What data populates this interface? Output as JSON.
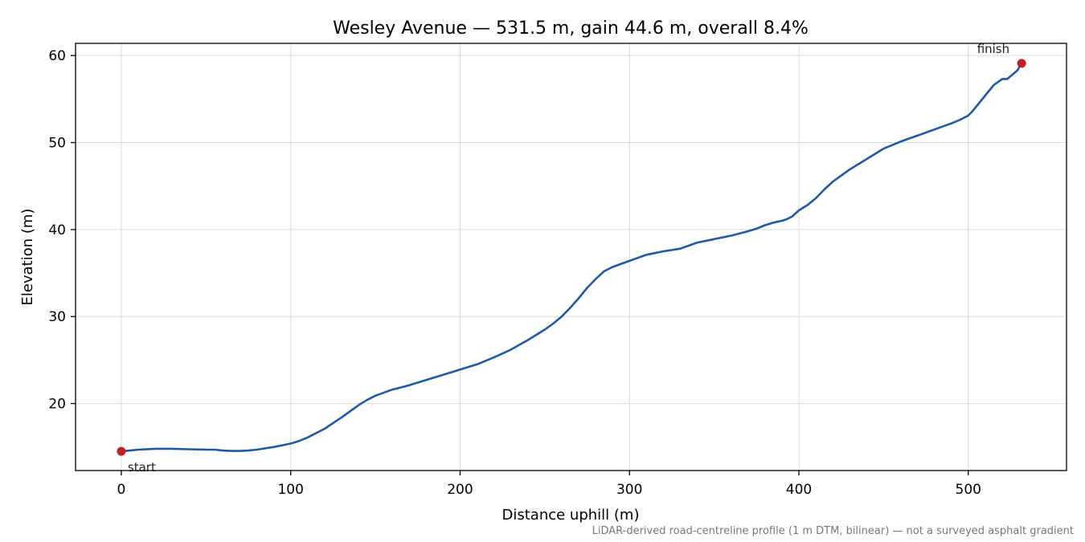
{
  "chart_data": {
    "type": "line",
    "title": "Wesley Avenue — 531.5 m, gain 44.6 m, overall 8.4%",
    "xlabel": "Distance uphill (m)",
    "ylabel": "Elevation (m)",
    "xlim": [
      -27,
      558
    ],
    "ylim": [
      12.3,
      61.4
    ],
    "xticks": [
      0,
      100,
      200,
      300,
      400,
      500
    ],
    "yticks": [
      20,
      30,
      40,
      50,
      60
    ],
    "grid": true,
    "line_color": "#1f5aa6",
    "marker_color": "#c0202a",
    "series": [
      {
        "x": [
          0,
          5,
          10,
          20,
          30,
          40,
          50,
          55,
          60,
          65,
          70,
          75,
          80,
          90,
          95,
          100,
          105,
          110,
          120,
          130,
          140,
          145,
          150,
          160,
          170,
          180,
          190,
          200,
          210,
          220,
          230,
          240,
          245,
          250,
          255,
          260,
          265,
          270,
          275,
          280,
          285,
          290,
          300,
          310,
          320,
          330,
          340,
          350,
          360,
          370,
          375,
          380,
          385,
          390,
          393,
          396,
          400,
          405,
          410,
          415,
          420,
          430,
          440,
          450,
          460,
          470,
          480,
          490,
          495,
          500,
          502,
          505,
          510,
          515,
          520,
          523,
          526,
          529,
          531.5
        ],
        "y": [
          14.5,
          14.6,
          14.7,
          14.8,
          14.8,
          14.75,
          14.7,
          14.7,
          14.6,
          14.55,
          14.55,
          14.6,
          14.7,
          15.0,
          15.2,
          15.4,
          15.7,
          16.1,
          17.1,
          18.4,
          19.8,
          20.4,
          20.9,
          21.6,
          22.1,
          22.7,
          23.3,
          23.9,
          24.5,
          25.3,
          26.2,
          27.3,
          27.9,
          28.5,
          29.2,
          30.0,
          31.0,
          32.1,
          33.3,
          34.3,
          35.2,
          35.7,
          36.4,
          37.1,
          37.5,
          37.8,
          38.5,
          38.9,
          39.3,
          39.8,
          40.1,
          40.5,
          40.8,
          41.0,
          41.2,
          41.5,
          42.2,
          42.8,
          43.6,
          44.6,
          45.5,
          46.9,
          48.1,
          49.3,
          50.1,
          50.8,
          51.5,
          52.2,
          52.6,
          53.1,
          53.5,
          54.2,
          55.4,
          56.6,
          57.3,
          57.3,
          57.8,
          58.3,
          59.1
        ]
      }
    ],
    "annotations": [
      {
        "text": "start",
        "x": 0,
        "y": 14.5
      },
      {
        "text": "finish",
        "x": 531.5,
        "y": 59.1
      }
    ],
    "footnote": "LiDAR-derived road-centreline profile (1 m DTM, bilinear) — not a surveyed asphalt gradient"
  }
}
